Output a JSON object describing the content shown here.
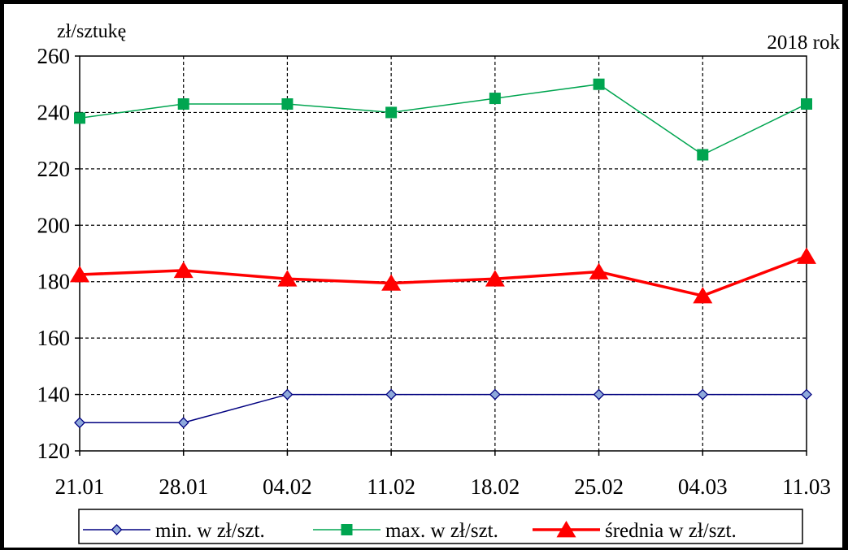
{
  "chart_data": {
    "type": "line",
    "ylabel": "zł/sztukę",
    "annotation": "2018 rok",
    "categories": [
      "21.01",
      "28.01",
      "04.02",
      "11.02",
      "18.02",
      "25.02",
      "04.03",
      "11.03"
    ],
    "ylim": [
      120,
      260
    ],
    "yticks": [
      120,
      140,
      160,
      180,
      200,
      220,
      240,
      260
    ],
    "grid": true,
    "legend_position": "bottom",
    "series": [
      {
        "name": "min. w zł/szt.",
        "color": "#000080",
        "marker": "diamond",
        "values": [
          130,
          130,
          140,
          140,
          140,
          140,
          140,
          140
        ]
      },
      {
        "name": "max. w zł/szt.",
        "color": "#00A550",
        "marker": "square",
        "values": [
          238,
          243,
          243,
          240,
          245,
          250,
          225,
          243
        ]
      },
      {
        "name": "średnia w zł/szt.",
        "color": "#FF0000",
        "marker": "triangle",
        "values": [
          182.5,
          184,
          181,
          179.5,
          181,
          183.5,
          175,
          189
        ]
      }
    ]
  }
}
